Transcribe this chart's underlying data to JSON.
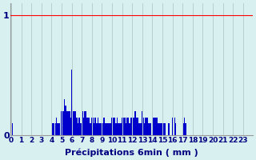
{
  "xlabel": "Précipitations 6min ( mm )",
  "background_color": "#d8f0f0",
  "bar_color": "#0000cc",
  "grid_color": "#b8d0d0",
  "ytick_color": "#000080",
  "xtick_color": "#000080",
  "ylim": [
    0,
    1.1
  ],
  "yticks": [
    0,
    1
  ],
  "xtick_labels": [
    "0",
    "1",
    "2",
    "3",
    "4",
    "5",
    "6",
    "7",
    "8",
    "9",
    "10",
    "11",
    "12",
    "13",
    "14",
    "15",
    "16",
    "17",
    "18",
    "19",
    "20",
    "21",
    "22",
    "23"
  ],
  "values": [
    0.0,
    0.1,
    0.0,
    0.0,
    0.0,
    0.0,
    0.0,
    0.0,
    0.0,
    0.0,
    0.0,
    0.0,
    0.0,
    0.0,
    0.0,
    0.0,
    0.0,
    0.0,
    0.0,
    0.0,
    0.0,
    0.0,
    0.0,
    0.0,
    0.0,
    0.0,
    0.0,
    0.0,
    0.0,
    0.0,
    0.0,
    0.0,
    0.0,
    0.0,
    0.0,
    0.0,
    0.0,
    0.0,
    0.0,
    0.0,
    0.0,
    0.1,
    0.1,
    0.0,
    0.1,
    0.15,
    0.1,
    0.1,
    0.1,
    0.0,
    0.2,
    0.2,
    0.2,
    0.3,
    0.25,
    0.2,
    0.2,
    0.2,
    0.2,
    0.15,
    0.55,
    0.25,
    0.2,
    0.2,
    0.2,
    0.15,
    0.1,
    0.15,
    0.15,
    0.1,
    0.2,
    0.2,
    0.15,
    0.2,
    0.2,
    0.15,
    0.15,
    0.15,
    0.1,
    0.1,
    0.15,
    0.15,
    0.1,
    0.15,
    0.15,
    0.1,
    0.15,
    0.1,
    0.1,
    0.1,
    0.1,
    0.1,
    0.15,
    0.1,
    0.1,
    0.1,
    0.1,
    0.1,
    0.1,
    0.1,
    0.15,
    0.15,
    0.15,
    0.15,
    0.1,
    0.15,
    0.1,
    0.1,
    0.1,
    0.1,
    0.15,
    0.15,
    0.15,
    0.15,
    0.1,
    0.15,
    0.15,
    0.1,
    0.1,
    0.15,
    0.2,
    0.15,
    0.15,
    0.2,
    0.15,
    0.15,
    0.15,
    0.1,
    0.1,
    0.1,
    0.2,
    0.15,
    0.1,
    0.15,
    0.15,
    0.15,
    0.1,
    0.1,
    0.1,
    0.0,
    0.2,
    0.15,
    0.15,
    0.15,
    0.15,
    0.15,
    0.1,
    0.1,
    0.1,
    0.1,
    0.1,
    0.1,
    0.1,
    0.1,
    0.0,
    0.0,
    0.1,
    0.1,
    0.0,
    0.0,
    0.15,
    0.0,
    0.15,
    0.1,
    0.0,
    0.0,
    0.0,
    0.0,
    0.0,
    0.0,
    0.15,
    0.1,
    0.15,
    0.1,
    0.0,
    0.0,
    0.0,
    0.0,
    0.0,
    0.0,
    0.0,
    0.0,
    0.0,
    0.0,
    0.0,
    0.0,
    0.0,
    0.0,
    0.0,
    0.0,
    0.0,
    0.0,
    0.0,
    0.0,
    0.0,
    0.0,
    0.0,
    0.0,
    0.0,
    0.0,
    0.0,
    0.0,
    0.0,
    0.0,
    0.0,
    0.0,
    0.0,
    0.0,
    0.0,
    0.0,
    0.0,
    0.0,
    0.0,
    0.0,
    0.0,
    0.0,
    0.0,
    0.0,
    0.0,
    0.0,
    0.0,
    0.0,
    0.0,
    0.0,
    0.0,
    0.0,
    0.0,
    0.0,
    0.0,
    0.0,
    0.0,
    0.0,
    0.0,
    0.0,
    0.0,
    0.0,
    0.0,
    0.0,
    0.0,
    0.0
  ]
}
